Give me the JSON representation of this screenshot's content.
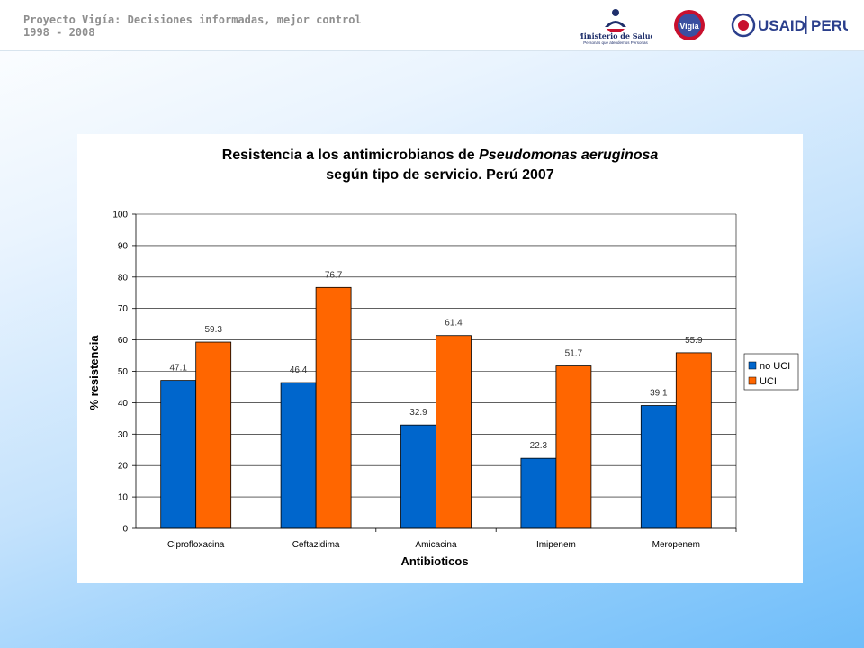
{
  "header": {
    "title_line1": "Proyecto Vigía: Decisiones informadas, mejor control",
    "title_line2": "1998 - 2008",
    "logos": {
      "minsa_text": "Ministerio de Salud",
      "minsa_tagline": "Personas que atendemos Personas",
      "vigia_text": "Vigia",
      "usaid_text": "USAID",
      "peru_text": "PERU"
    }
  },
  "colors": {
    "no_uci": "#0066cc",
    "uci": "#ff6600",
    "grid": "#000000"
  },
  "chart_data": {
    "type": "bar",
    "title_part1": "Resistencia a los antimicrobianos de ",
    "title_italic": "Pseudomonas aeruginosa",
    "title_line2": "según tipo de servicio. Perú 2007",
    "xlabel": "Antibioticos",
    "ylabel": "% resistencia",
    "ylim": [
      0,
      100
    ],
    "yticks": [
      0,
      10,
      20,
      30,
      40,
      50,
      60,
      70,
      80,
      90,
      100
    ],
    "grid": true,
    "legend_position": "right",
    "categories": [
      "Ciprofloxacina",
      "Ceftazidima",
      "Amicacina",
      "Imipenem",
      "Meropenem"
    ],
    "series": [
      {
        "name": "no UCI",
        "values": [
          47.1,
          46.4,
          32.9,
          22.3,
          39.1
        ]
      },
      {
        "name": "UCI",
        "values": [
          59.3,
          76.7,
          61.4,
          51.7,
          55.9
        ]
      }
    ]
  }
}
